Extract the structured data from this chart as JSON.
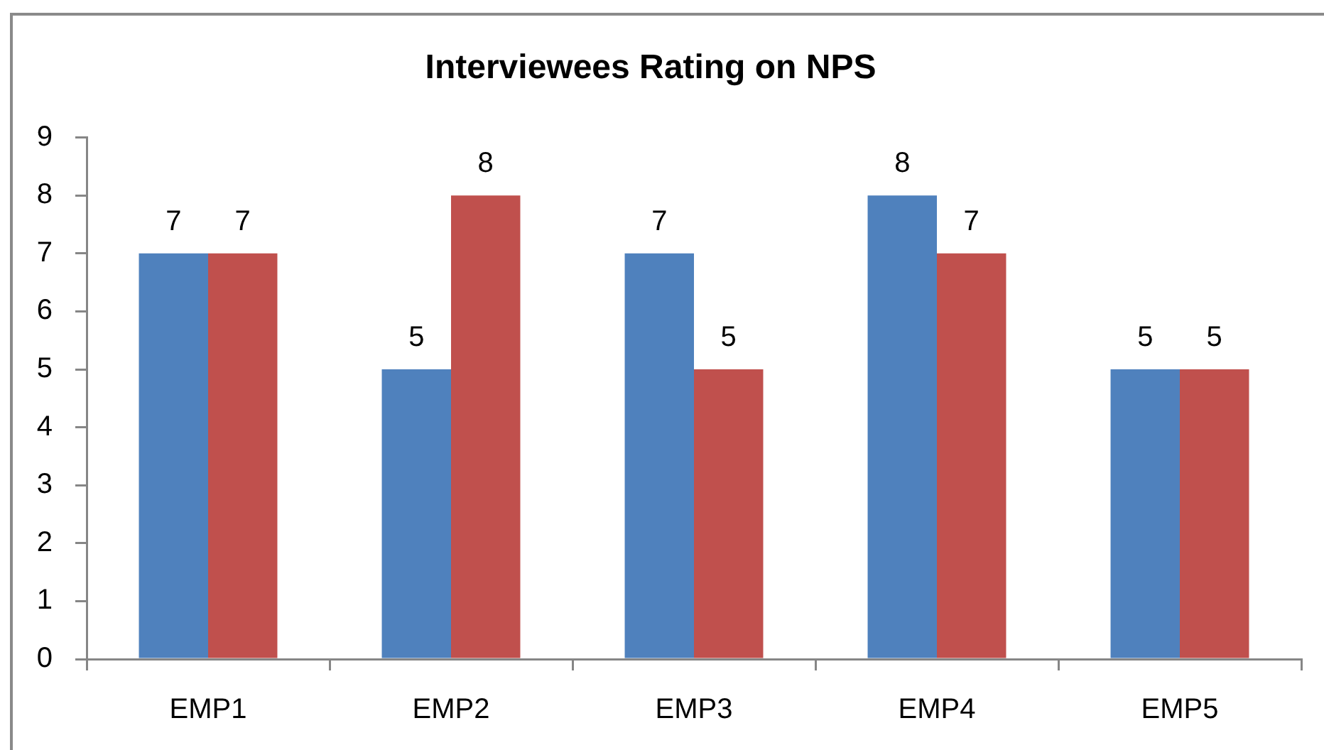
{
  "chart_data": {
    "type": "bar",
    "title": "Interviewees Rating on NPS",
    "categories": [
      "EMP1",
      "EMP2",
      "EMP3",
      "EMP4",
      "EMP5"
    ],
    "series": [
      {
        "color": "#4f81bd",
        "values": [
          7,
          5,
          7,
          8,
          5
        ]
      },
      {
        "color": "#c0504d",
        "values": [
          7,
          8,
          5,
          7,
          5
        ]
      }
    ],
    "ylim": [
      0,
      9
    ],
    "yticks": [
      0,
      1,
      2,
      3,
      4,
      5,
      6,
      7,
      8,
      9
    ],
    "grid": false,
    "data_labels": true
  }
}
